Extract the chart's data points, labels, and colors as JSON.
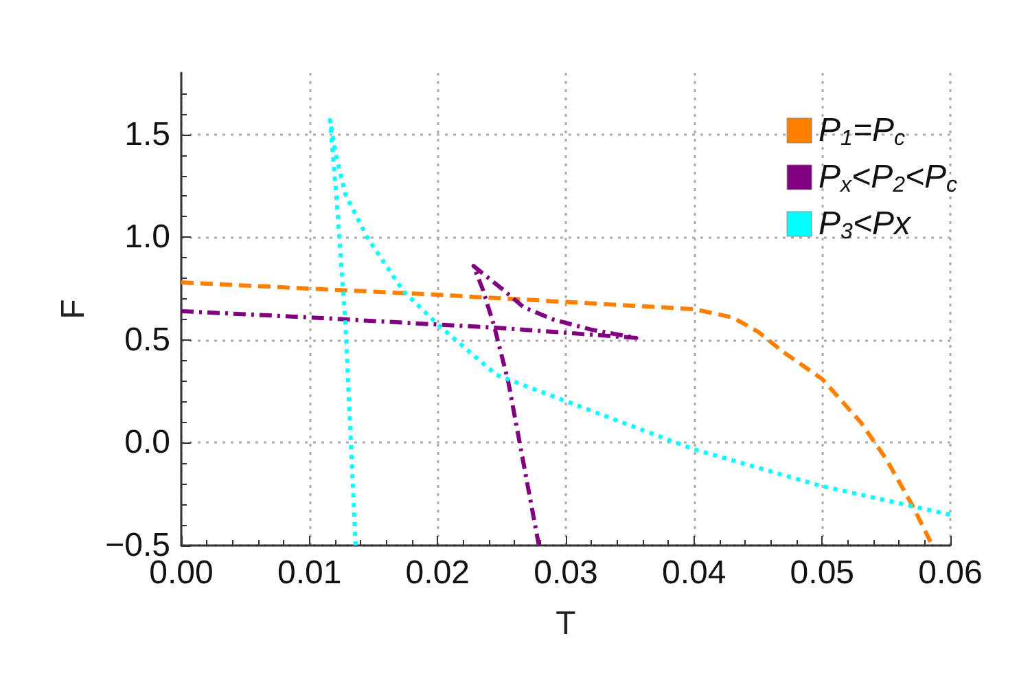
{
  "chart_data": {
    "type": "line",
    "xlabel": "T",
    "ylabel": "F",
    "xlim": [
      0,
      0.06
    ],
    "ylim": [
      -0.5,
      1.8
    ],
    "xticks": [
      {
        "value": 0,
        "label": "0.00"
      },
      {
        "value": 0.01,
        "label": "0.01"
      },
      {
        "value": 0.02,
        "label": "0.02"
      },
      {
        "value": 0.03,
        "label": "0.03"
      },
      {
        "value": 0.04,
        "label": "0.04"
      },
      {
        "value": 0.05,
        "label": "0.05"
      },
      {
        "value": 0.06,
        "label": "0.06"
      }
    ],
    "yticks": [
      {
        "value": -0.5,
        "label": "−0.5"
      },
      {
        "value": 0,
        "label": "0.0"
      },
      {
        "value": 0.5,
        "label": "0.5"
      },
      {
        "value": 1,
        "label": "1.0"
      },
      {
        "value": 1.5,
        "label": "1.5"
      }
    ],
    "grid": true,
    "legend": "top right",
    "marker": "none",
    "series": [
      {
        "name": "P$_{1}$=P$_{c}$",
        "color": "#ff7f00",
        "line_style": "dashed",
        "x": [
          0,
          0.02,
          0.04,
          0.043,
          0.045,
          0.047,
          0.05,
          0.053,
          0.055,
          0.057,
          0.0586
        ],
        "values": [
          0.78,
          0.72,
          0.65,
          0.61,
          0.54,
          0.44,
          0.31,
          0.1,
          -0.08,
          -0.3,
          -0.5
        ]
      },
      {
        "name": "P$_{x}$<P$_{2}$<P$_{c}$",
        "color": "#800080",
        "line_style": "dashdot",
        "x": [
          0,
          0.01,
          0.02,
          0.0245,
          0.03,
          0.0355,
          0.032,
          0.029,
          0.0267,
          0.025,
          0.0228,
          0.0235,
          0.0244,
          0.0255,
          0.0264,
          0.0279
        ],
        "values": [
          0.64,
          0.61,
          0.575,
          0.56,
          0.535,
          0.51,
          0.55,
          0.6,
          0.66,
          0.75,
          0.86,
          0.75,
          0.57,
          0.3,
          0,
          -0.5
        ]
      },
      {
        "name": "P$_{3}$<Px",
        "color": "#00ffff",
        "line_style": "dotted",
        "x": [
          0.0136,
          0.0128,
          0.0121,
          0.0116,
          0.0121,
          0.0128,
          0.0145,
          0.0173,
          0.0201,
          0.0246,
          0.0301,
          0.0399,
          0.0499,
          0.06
        ],
        "values": [
          -0.5,
          0.59,
          1.2,
          1.57,
          1.39,
          1.21,
          1,
          0.74,
          0.57,
          0.33,
          0.2,
          -0.03,
          -0.21,
          -0.35
        ]
      }
    ]
  }
}
